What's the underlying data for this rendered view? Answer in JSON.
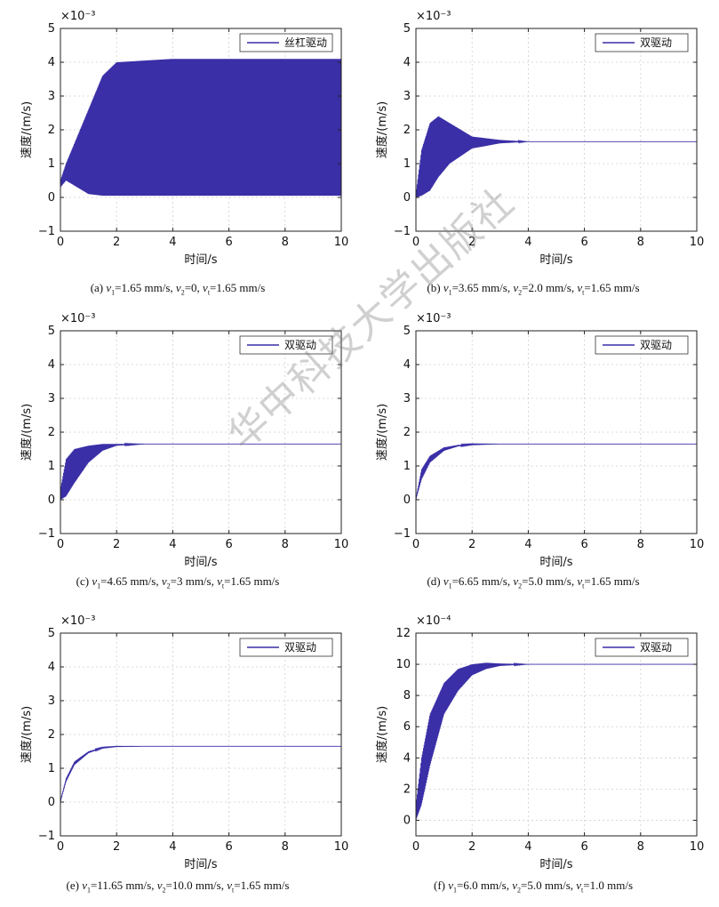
{
  "chart_data": [
    {
      "panel": "a",
      "type": "line",
      "xlabel": "时间/s",
      "ylabel": "速度/(m/s)",
      "y_multiplier": "×10⁻³",
      "xlim": [
        0,
        10
      ],
      "ylim": [
        -1,
        5
      ],
      "xticks": [
        "0",
        "2",
        "4",
        "6",
        "8",
        "10"
      ],
      "yticks": [
        "−1",
        "0",
        "1",
        "2",
        "3",
        "4",
        "5"
      ],
      "legend": "丝杠驱动",
      "legend_placement": "top-right",
      "grid": true,
      "series": [
        {
          "name": "丝杠驱动",
          "color": "#3a2fa6",
          "x": [
            0,
            0.2,
            0.5,
            1.0,
            1.5,
            2.0,
            3.0,
            4.0,
            6.0,
            8.0,
            10.0
          ],
          "y_upper": [
            0.5,
            1.0,
            1.6,
            2.6,
            3.6,
            4.0,
            4.05,
            4.1,
            4.1,
            4.1,
            4.1
          ],
          "y_lower": [
            0.3,
            0.5,
            0.35,
            0.1,
            0.05,
            0.05,
            0.05,
            0.05,
            0.05,
            0.05,
            0.05
          ]
        }
      ],
      "caption": {
        "a": "(a) ",
        "v1": "=1.65 mm/s, ",
        "v2": "=0, ",
        "vt": "=1.65 mm/s"
      }
    },
    {
      "panel": "b",
      "type": "line",
      "xlabel": "时间/s",
      "ylabel": "速度/(m/s)",
      "y_multiplier": "×10⁻³",
      "xlim": [
        0,
        10
      ],
      "ylim": [
        -1,
        5
      ],
      "xticks": [
        "0",
        "2",
        "4",
        "6",
        "8",
        "10"
      ],
      "yticks": [
        "−1",
        "0",
        "1",
        "2",
        "3",
        "4",
        "5"
      ],
      "legend": "双驱动",
      "legend_placement": "top-right",
      "grid": true,
      "series": [
        {
          "name": "双驱动",
          "color": "#3a2fa6",
          "x": [
            0,
            0.2,
            0.5,
            0.8,
            1.2,
            2.0,
            3.0,
            4.0,
            10.0
          ],
          "y_upper": [
            0.1,
            1.4,
            2.2,
            2.4,
            2.2,
            1.8,
            1.7,
            1.65,
            1.65
          ],
          "y_lower": [
            0.0,
            0.05,
            0.2,
            0.6,
            1.0,
            1.45,
            1.6,
            1.65,
            1.65
          ]
        }
      ],
      "caption": {
        "a": "(b) ",
        "v1": "=3.65 mm/s, ",
        "v2": "=2.0 mm/s, ",
        "vt": "=1.65 mm/s"
      }
    },
    {
      "panel": "c",
      "type": "line",
      "xlabel": "时间/s",
      "ylabel": "速度/(m/s)",
      "y_multiplier": "×10⁻³",
      "xlim": [
        0,
        10
      ],
      "ylim": [
        -1,
        5
      ],
      "xticks": [
        "0",
        "2",
        "4",
        "6",
        "8",
        "10"
      ],
      "yticks": [
        "−1",
        "0",
        "1",
        "2",
        "3",
        "4",
        "5"
      ],
      "legend": "双驱动",
      "legend_placement": "top-right",
      "grid": true,
      "series": [
        {
          "name": "双驱动",
          "color": "#3a2fa6",
          "x": [
            0,
            0.2,
            0.5,
            1.0,
            1.5,
            2.0,
            3.0,
            10.0
          ],
          "y_upper": [
            0.3,
            1.2,
            1.5,
            1.6,
            1.65,
            1.65,
            1.65,
            1.65
          ],
          "y_lower": [
            0.0,
            0.1,
            0.5,
            1.1,
            1.45,
            1.6,
            1.65,
            1.65
          ]
        }
      ],
      "caption": {
        "a": "(c) ",
        "v1": "=4.65 mm/s, ",
        "v2": "=3 mm/s, ",
        "vt": "=1.65 mm/s"
      }
    },
    {
      "panel": "d",
      "type": "line",
      "xlabel": "时间/s",
      "ylabel": "速度/(m/s)",
      "y_multiplier": "×10⁻³",
      "xlim": [
        0,
        10
      ],
      "ylim": [
        -1,
        5
      ],
      "xticks": [
        "0",
        "2",
        "4",
        "6",
        "8",
        "10"
      ],
      "yticks": [
        "−1",
        "0",
        "1",
        "2",
        "3",
        "4",
        "5"
      ],
      "legend": "双驱动",
      "legend_placement": "top-right",
      "grid": true,
      "series": [
        {
          "name": "双驱动",
          "color": "#3a2fa6",
          "x": [
            0,
            0.2,
            0.5,
            1.0,
            1.5,
            2.0,
            3.0,
            10.0
          ],
          "y_upper": [
            0.05,
            0.9,
            1.3,
            1.55,
            1.62,
            1.65,
            1.65,
            1.65
          ],
          "y_lower": [
            0.0,
            0.6,
            1.1,
            1.45,
            1.58,
            1.63,
            1.65,
            1.65
          ]
        }
      ],
      "caption": {
        "a": "(d) ",
        "v1": "=6.65 mm/s, ",
        "v2": "=5.0 mm/s, ",
        "vt": "=1.65 mm/s"
      }
    },
    {
      "panel": "e",
      "type": "line",
      "xlabel": "时间/s",
      "ylabel": "速度/(m/s)",
      "y_multiplier": "×10⁻³",
      "xlim": [
        0,
        10
      ],
      "ylim": [
        -1,
        5
      ],
      "xticks": [
        "0",
        "2",
        "4",
        "6",
        "8",
        "10"
      ],
      "yticks": [
        "−1",
        "0",
        "1",
        "2",
        "3",
        "4",
        "5"
      ],
      "legend": "双驱动",
      "legend_placement": "top-right",
      "grid": true,
      "series": [
        {
          "name": "双驱动",
          "color": "#3a2fa6",
          "x": [
            0,
            0.2,
            0.5,
            1.0,
            1.5,
            2.0,
            3.0,
            10.0
          ],
          "y_upper": [
            0.05,
            0.7,
            1.2,
            1.5,
            1.62,
            1.65,
            1.65,
            1.65
          ],
          "y_lower": [
            0.0,
            0.6,
            1.1,
            1.45,
            1.6,
            1.64,
            1.65,
            1.65
          ]
        }
      ],
      "caption": {
        "a": "(e) ",
        "v1": "=11.65 mm/s, ",
        "v2": "=10.0 mm/s, ",
        "vt": "=1.65 mm/s"
      }
    },
    {
      "panel": "f",
      "type": "line",
      "xlabel": "时间/s",
      "ylabel": "速度/(m/s)",
      "y_multiplier": "×10⁻⁴",
      "xlim": [
        0,
        10
      ],
      "ylim": [
        -1,
        12
      ],
      "xticks": [
        "0",
        "2",
        "4",
        "6",
        "8",
        "10"
      ],
      "yticks": [
        "0",
        "2",
        "4",
        "6",
        "8",
        "10",
        "12"
      ],
      "legend": "双驱动",
      "legend_placement": "top-right",
      "grid": true,
      "series": [
        {
          "name": "双驱动",
          "color": "#3a2fa6",
          "x": [
            0,
            0.2,
            0.5,
            1.0,
            1.5,
            2.0,
            2.5,
            3.0,
            4.0,
            10.0
          ],
          "y_upper": [
            1.0,
            4.0,
            6.8,
            8.8,
            9.7,
            10.0,
            10.1,
            10.05,
            10.0,
            10.0
          ],
          "y_lower": [
            0.0,
            1.0,
            3.5,
            6.8,
            8.3,
            9.3,
            9.7,
            9.9,
            10.0,
            10.0
          ]
        }
      ],
      "caption": {
        "a": "(f) ",
        "v1": "=6.0 mm/s, ",
        "v2": "=5.0 mm/s, ",
        "vt": "=1.0 mm/s"
      }
    }
  ],
  "watermark": "华中科技大学出版社"
}
